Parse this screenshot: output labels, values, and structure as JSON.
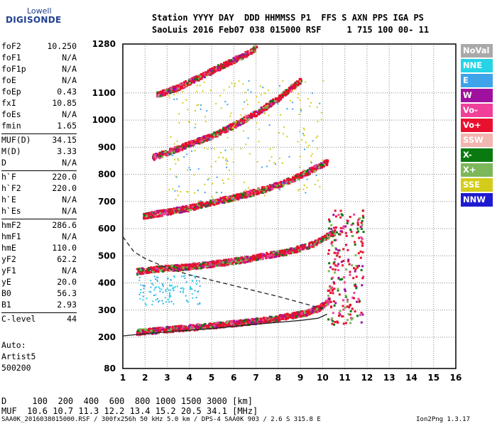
{
  "logo": {
    "line1": "Lowell",
    "line2": "DIGISONDE"
  },
  "header": {
    "line1": "Station YYYY DAY  DDD HHMMSS P1  FFS S AXN PPS IGA PS",
    "line2": "SaoLuis 2016 Feb07 038 015000 RSF     1 715 100 00- 11"
  },
  "params": [
    {
      "label": "foF2",
      "value": "10.250"
    },
    {
      "label": "foF1",
      "value": "N/A"
    },
    {
      "label": "foF1p",
      "value": "N/A"
    },
    {
      "label": "foE",
      "value": "N/A"
    },
    {
      "label": "foEp",
      "value": "0.43"
    },
    {
      "label": "fxI",
      "value": "10.85"
    },
    {
      "label": "foEs",
      "value": "N/A"
    },
    {
      "label": "fmin",
      "value": "1.65"
    },
    {
      "label": "MUF(D)",
      "value": "34.15",
      "sep": true
    },
    {
      "label": "M(D)",
      "value": "3.33"
    },
    {
      "label": "D",
      "value": "N/A"
    },
    {
      "label": "h`F",
      "value": "220.0",
      "sep": true
    },
    {
      "label": "h`F2",
      "value": "220.0"
    },
    {
      "label": "h`E",
      "value": "N/A"
    },
    {
      "label": "h`Es",
      "value": "N/A"
    },
    {
      "label": "hmF2",
      "value": "286.6",
      "sep": true
    },
    {
      "label": "hmF1",
      "value": "N/A"
    },
    {
      "label": "hmE",
      "value": "110.0"
    },
    {
      "label": "yF2",
      "value": "62.2"
    },
    {
      "label": "yF1",
      "value": "N/A"
    },
    {
      "label": "yE",
      "value": "20.0"
    },
    {
      "label": "B0",
      "value": "56.3"
    },
    {
      "label": "B1",
      "value": "2.93"
    },
    {
      "label": "C-level",
      "value": "44",
      "sep": true
    }
  ],
  "auto": {
    "label": "Auto:",
    "system": "Artist5",
    "version": "500200"
  },
  "muf_table": {
    "d_row": "D     100  200  400  600  800 1000 1500 3000 [km]",
    "muf_row": "MUF  10.6 10.7 11.3 12.2 13.4 15.2 20.5 34.1 [MHz]"
  },
  "footer": {
    "left": "SAA0K_2016038015000.RSF / 300fx256h 50 kHz 5.0 km / DPS-4 SAA0K 903 / 2.6 S 315.8 E",
    "right": "Ion2Png 1.3.17"
  },
  "legend": [
    {
      "label": "NoVal",
      "color": "#a9a9a9"
    },
    {
      "label": "NNE",
      "color": "#26d4e6"
    },
    {
      "label": "E",
      "color": "#3ea3e8"
    },
    {
      "label": "W",
      "color": "#a0109e"
    },
    {
      "label": "Vo-",
      "color": "#f0409a"
    },
    {
      "label": "Vo+",
      "color": "#e8102e"
    },
    {
      "label": "SSW",
      "color": "#f2b5b0"
    },
    {
      "label": "X-",
      "color": "#0a7a10"
    },
    {
      "label": "X+",
      "color": "#7cb85a"
    },
    {
      "label": "SSE",
      "color": "#d4cc1a"
    },
    {
      "label": "NNW",
      "color": "#1e1ad0"
    }
  ],
  "chart_data": {
    "type": "scatter",
    "xlabel": "",
    "ylabel": "",
    "xlim": [
      1,
      16
    ],
    "ylim": [
      80,
      1280
    ],
    "x_ticks": [
      1,
      2,
      3,
      4,
      5,
      6,
      7,
      8,
      9,
      10,
      11,
      12,
      13,
      14,
      15,
      16
    ],
    "y_ticks": [
      80,
      200,
      300,
      400,
      500,
      600,
      700,
      800,
      900,
      1000,
      1100,
      1280
    ],
    "grid": true,
    "traces": [
      {
        "name": "echo-1F",
        "x": [
          1.6,
          2.5,
          3.5,
          4.5,
          5.5,
          6.5,
          7.5,
          8.5,
          9.2,
          9.8,
          10.3
        ],
        "y": [
          222,
          228,
          235,
          242,
          250,
          258,
          268,
          282,
          292,
          310,
          340
        ]
      },
      {
        "name": "echo-2F",
        "x": [
          1.6,
          2.5,
          3.5,
          4.5,
          5.5,
          6.5,
          7.5,
          8.5,
          9.5,
          10.5
        ],
        "y": [
          445,
          455,
          460,
          468,
          478,
          490,
          505,
          520,
          545,
          590
        ]
      },
      {
        "name": "echo-3F",
        "x": [
          1.9,
          3,
          4,
          5,
          6,
          7,
          8,
          9,
          10.2
        ],
        "y": [
          650,
          665,
          680,
          700,
          718,
          740,
          765,
          800,
          850
        ]
      },
      {
        "name": "echo-4F",
        "x": [
          2.3,
          3,
          4,
          5,
          6,
          7,
          8,
          9
        ],
        "y": [
          865,
          885,
          915,
          945,
          985,
          1030,
          1085,
          1150
        ]
      },
      {
        "name": "echo-5F",
        "x": [
          2.5,
          3.5,
          4.5,
          5.5,
          6.5,
          7
        ],
        "y": [
          1095,
          1125,
          1165,
          1205,
          1245,
          1270
        ]
      }
    ],
    "profile_solid": {
      "x": [
        1,
        2,
        3,
        4,
        5,
        6,
        7,
        8,
        9,
        9.8,
        10.2
      ],
      "y": [
        205,
        213,
        220,
        226,
        232,
        240,
        248,
        255,
        262,
        270,
        285
      ]
    },
    "profile_dashed": {
      "x": [
        1,
        1.5,
        2,
        3,
        4,
        5,
        6,
        7,
        8,
        9,
        10
      ],
      "y": [
        570,
        515,
        490,
        455,
        430,
        410,
        390,
        370,
        350,
        328,
        305
      ]
    }
  }
}
